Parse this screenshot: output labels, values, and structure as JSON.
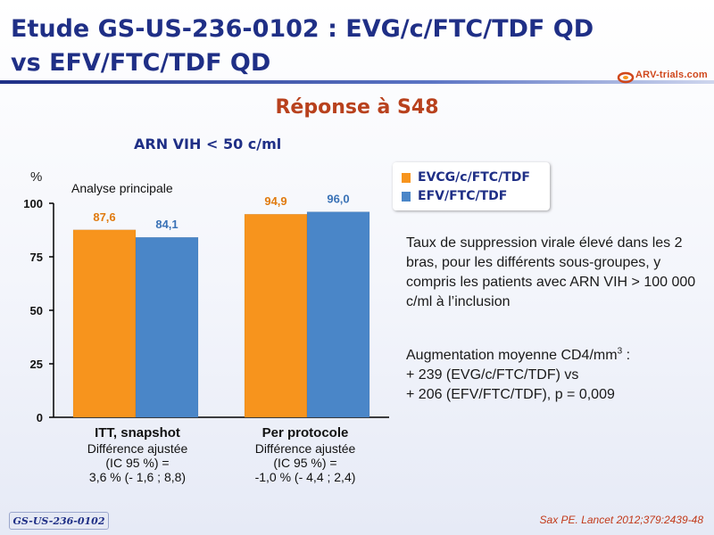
{
  "slide": {
    "title_line1": "Etude GS-US-236-0102 : EVG/c/FTC/TDF QD",
    "title_line2": "vs EFV/FTC/TDF QD",
    "subtitle": "Réponse à S48",
    "logo_text": "ARV-trials.com",
    "footer_tag": "GS-US-236-0102",
    "citation": "Sax PE. Lancet 2012;379:2439-48",
    "colors": {
      "title": "#1f2f86",
      "accent": "#b8411d",
      "orange": "#f7941d",
      "blue": "#4a86c8"
    }
  },
  "chart_data": {
    "type": "bar",
    "title": "ARN VIH < 50 c/ml",
    "ylabel": "%",
    "annotation": "Analyse principale",
    "categories": [
      "ITT, snapshot",
      "Per protocole"
    ],
    "series": [
      {
        "name": "EVCG/c/FTC/TDF",
        "color": "#f7941d",
        "values": [
          87.6,
          94.9
        ],
        "labels": [
          "87,6",
          "94,9"
        ]
      },
      {
        "name": "EFV/FTC/TDF",
        "color": "#4a86c8",
        "values": [
          84.1,
          96.0
        ],
        "labels": [
          "84,1",
          "96,0"
        ]
      }
    ],
    "ylim": [
      0,
      100
    ],
    "yticks": [
      0,
      25,
      50,
      75,
      100
    ],
    "legend_position": "top-right",
    "category_notes": [
      [
        "Différence ajustée",
        "(IC 95 %) =",
        "3,6 % (- 1,6 ; 8,8)"
      ],
      [
        "Différence ajustée",
        "(IC 95 %) =",
        "-1,0 % (- 4,4 ; 2,4)"
      ]
    ]
  },
  "side_notes": {
    "suppression": "Taux de suppression virale élevé dans les 2 bras, pour les différents sous-groupes, y compris les patients avec ARN VIH > 100 000 c/ml à l’inclusion",
    "cd4_prefix": "Augmentation moyenne CD4/mm",
    "cd4_sup": "3",
    "cd4_suffix": " :",
    "cd4_line2": "+ 239 (EVG/c/FTC/TDF) vs",
    "cd4_line3": "+ 206 (EFV/FTC/TDF), p = 0,009"
  }
}
